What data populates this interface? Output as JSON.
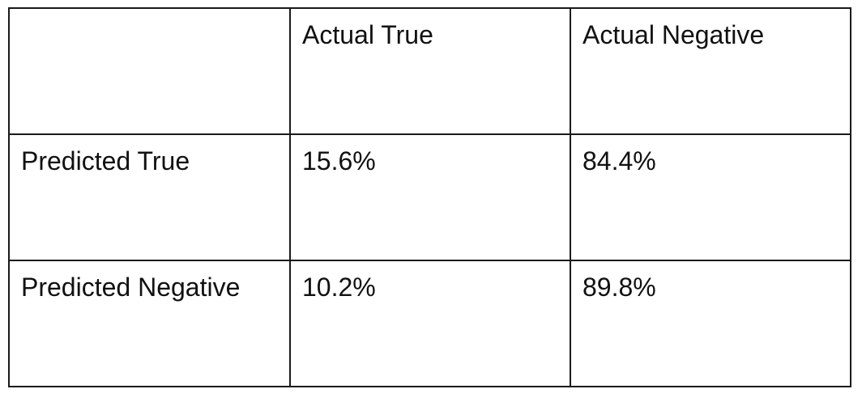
{
  "table": {
    "header": [
      "",
      "Actual True",
      "Actual Negative"
    ],
    "rows": [
      {
        "label": "Predicted True",
        "values": [
          "15.6%",
          "84.4%"
        ]
      },
      {
        "label": "Predicted Negative",
        "values": [
          "10.2%",
          "89.8%"
        ]
      }
    ]
  }
}
